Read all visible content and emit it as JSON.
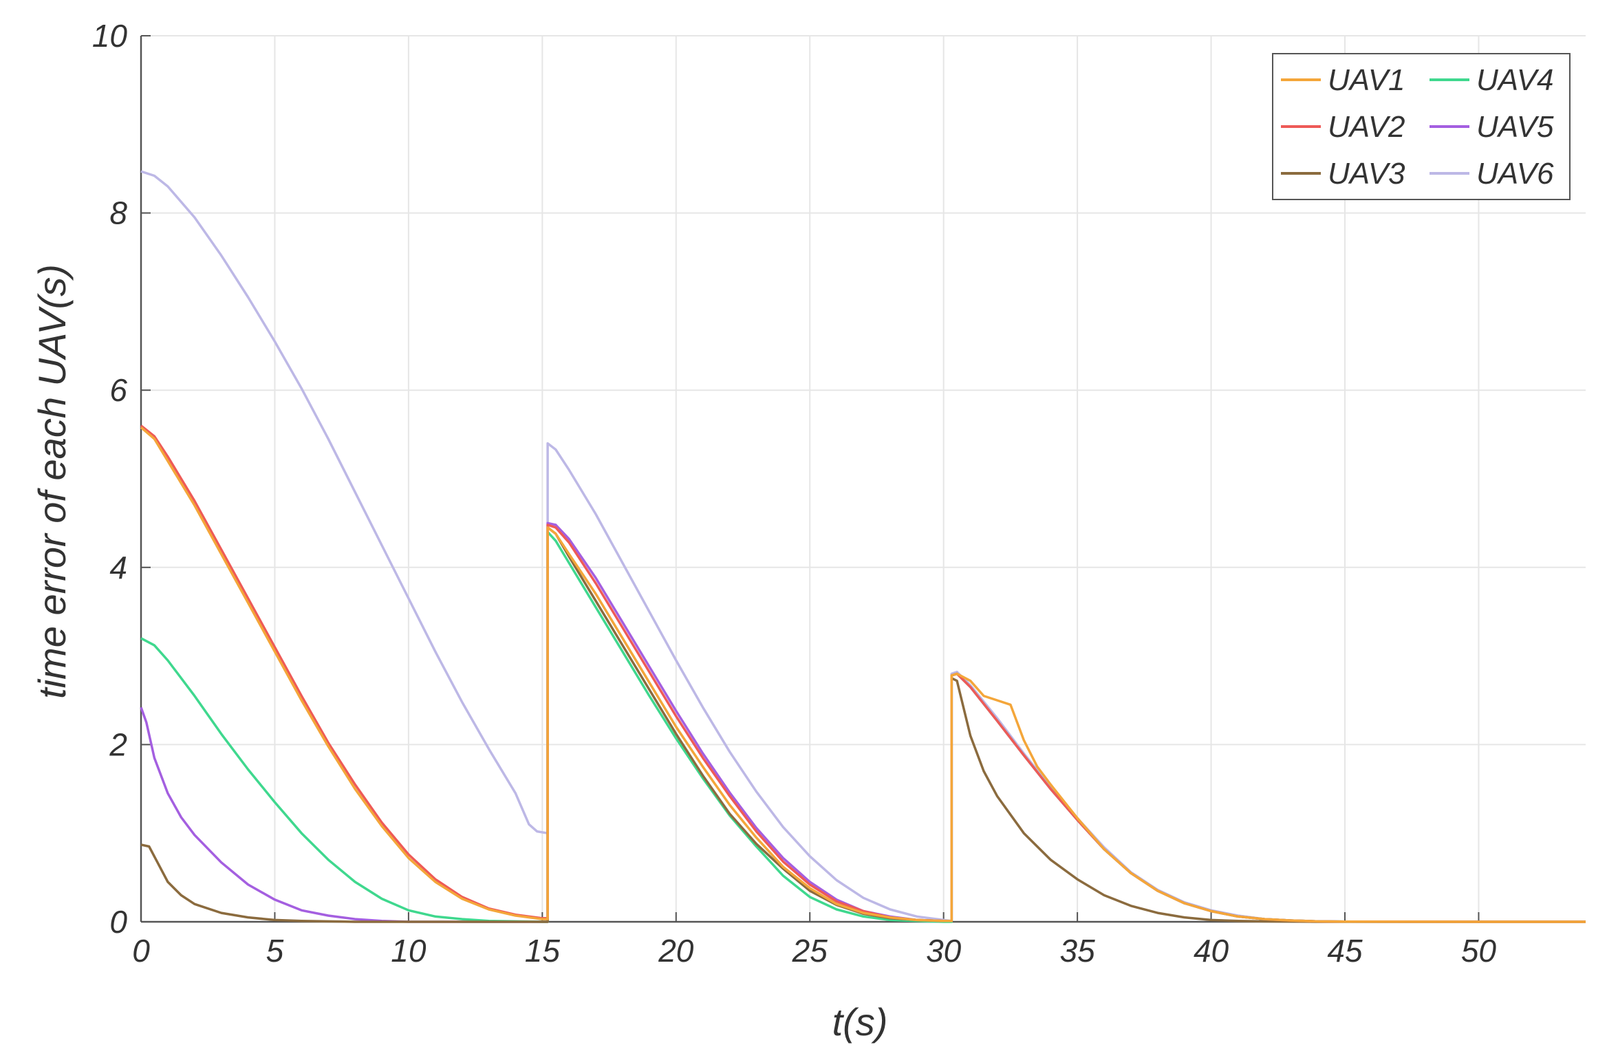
{
  "chart_data": {
    "type": "line",
    "title": "",
    "xlabel": "t(s)",
    "ylabel": "time error of each UAV(s)",
    "xlim": [
      0,
      54
    ],
    "ylim": [
      0,
      10
    ],
    "xticks": [
      0,
      5,
      10,
      15,
      20,
      25,
      30,
      35,
      40,
      45,
      50
    ],
    "yticks": [
      0,
      2,
      4,
      6,
      8,
      10
    ],
    "grid": true,
    "legend_position": "top-right",
    "legend_columns": 2,
    "series": [
      {
        "name": "UAV1",
        "color": "#F4A63A",
        "points": [
          [
            0,
            5.58
          ],
          [
            0.5,
            5.45
          ],
          [
            1,
            5.2
          ],
          [
            2,
            4.7
          ],
          [
            3,
            4.15
          ],
          [
            4,
            3.6
          ],
          [
            5,
            3.05
          ],
          [
            6,
            2.5
          ],
          [
            7,
            1.98
          ],
          [
            8,
            1.5
          ],
          [
            9,
            1.08
          ],
          [
            10,
            0.72
          ],
          [
            11,
            0.45
          ],
          [
            12,
            0.26
          ],
          [
            13,
            0.14
          ],
          [
            14,
            0.07
          ],
          [
            15,
            0.03
          ],
          [
            15.2,
            0.03
          ],
          [
            15.2,
            4.45
          ],
          [
            15.5,
            4.38
          ],
          [
            16,
            4.15
          ],
          [
            17,
            3.7
          ],
          [
            18,
            3.2
          ],
          [
            19,
            2.7
          ],
          [
            20,
            2.2
          ],
          [
            21,
            1.75
          ],
          [
            22,
            1.32
          ],
          [
            23,
            0.95
          ],
          [
            24,
            0.62
          ],
          [
            25,
            0.38
          ],
          [
            26,
            0.2
          ],
          [
            27,
            0.1
          ],
          [
            28,
            0.05
          ],
          [
            29,
            0.02
          ],
          [
            30,
            0.01
          ],
          [
            30.3,
            0.01
          ],
          [
            30.3,
            2.78
          ],
          [
            30.5,
            2.8
          ],
          [
            31,
            2.72
          ],
          [
            31.5,
            2.55
          ],
          [
            32,
            2.5
          ],
          [
            32.5,
            2.45
          ],
          [
            33,
            2.05
          ],
          [
            33.5,
            1.75
          ],
          [
            34,
            1.55
          ],
          [
            35,
            1.17
          ],
          [
            36,
            0.82
          ],
          [
            37,
            0.55
          ],
          [
            38,
            0.35
          ],
          [
            39,
            0.21
          ],
          [
            40,
            0.12
          ],
          [
            41,
            0.06
          ],
          [
            42,
            0.03
          ],
          [
            43,
            0.015
          ],
          [
            44,
            0.005
          ],
          [
            45,
            0.002
          ],
          [
            50,
            0
          ],
          [
            54,
            0
          ]
        ]
      },
      {
        "name": "UAV2",
        "color": "#EE5A57",
        "points": [
          [
            0,
            5.6
          ],
          [
            0.5,
            5.48
          ],
          [
            1,
            5.25
          ],
          [
            2,
            4.75
          ],
          [
            3,
            4.2
          ],
          [
            4,
            3.65
          ],
          [
            5,
            3.1
          ],
          [
            6,
            2.55
          ],
          [
            7,
            2.02
          ],
          [
            8,
            1.55
          ],
          [
            9,
            1.12
          ],
          [
            10,
            0.76
          ],
          [
            11,
            0.48
          ],
          [
            12,
            0.28
          ],
          [
            13,
            0.15
          ],
          [
            14,
            0.08
          ],
          [
            15,
            0.04
          ],
          [
            15.2,
            0.04
          ],
          [
            15.2,
            4.48
          ],
          [
            15.5,
            4.45
          ],
          [
            16,
            4.28
          ],
          [
            17,
            3.82
          ],
          [
            18,
            3.32
          ],
          [
            19,
            2.82
          ],
          [
            20,
            2.32
          ],
          [
            21,
            1.85
          ],
          [
            22,
            1.42
          ],
          [
            23,
            1.02
          ],
          [
            24,
            0.68
          ],
          [
            25,
            0.42
          ],
          [
            26,
            0.23
          ],
          [
            27,
            0.12
          ],
          [
            28,
            0.05
          ],
          [
            29,
            0.02
          ],
          [
            30,
            0.01
          ],
          [
            30.3,
            0.01
          ],
          [
            30.3,
            2.78
          ],
          [
            30.5,
            2.8
          ],
          [
            31,
            2.65
          ],
          [
            32,
            2.27
          ],
          [
            33,
            1.88
          ],
          [
            34,
            1.5
          ],
          [
            35,
            1.15
          ],
          [
            36,
            0.82
          ],
          [
            37,
            0.55
          ],
          [
            38,
            0.35
          ],
          [
            39,
            0.21
          ],
          [
            40,
            0.12
          ],
          [
            41,
            0.06
          ],
          [
            42,
            0.03
          ],
          [
            43,
            0.015
          ],
          [
            44,
            0.005
          ],
          [
            45,
            0.002
          ],
          [
            50,
            0
          ],
          [
            54,
            0
          ]
        ]
      },
      {
        "name": "UAV3",
        "color": "#8B6B3E",
        "points": [
          [
            0,
            0.87
          ],
          [
            0.3,
            0.85
          ],
          [
            0.6,
            0.68
          ],
          [
            1,
            0.45
          ],
          [
            1.5,
            0.3
          ],
          [
            2,
            0.2
          ],
          [
            3,
            0.1
          ],
          [
            4,
            0.05
          ],
          [
            5,
            0.02
          ],
          [
            6,
            0.01
          ],
          [
            8,
            0
          ],
          [
            15,
            0
          ],
          [
            15.2,
            0
          ],
          [
            15.2,
            4.45
          ],
          [
            15.5,
            4.38
          ],
          [
            16,
            4.12
          ],
          [
            17,
            3.62
          ],
          [
            18,
            3.12
          ],
          [
            19,
            2.62
          ],
          [
            20,
            2.12
          ],
          [
            21,
            1.65
          ],
          [
            22,
            1.22
          ],
          [
            23,
            0.88
          ],
          [
            24,
            0.6
          ],
          [
            25,
            0.35
          ],
          [
            26,
            0.19
          ],
          [
            27,
            0.09
          ],
          [
            28,
            0.04
          ],
          [
            29,
            0.02
          ],
          [
            30,
            0.01
          ],
          [
            30.3,
            0.01
          ],
          [
            30.3,
            2.75
          ],
          [
            30.5,
            2.72
          ],
          [
            31,
            2.1
          ],
          [
            31.5,
            1.7
          ],
          [
            32,
            1.42
          ],
          [
            33,
            1.0
          ],
          [
            34,
            0.7
          ],
          [
            35,
            0.48
          ],
          [
            36,
            0.3
          ],
          [
            37,
            0.18
          ],
          [
            38,
            0.1
          ],
          [
            39,
            0.05
          ],
          [
            40,
            0.02
          ],
          [
            41,
            0.01
          ],
          [
            42,
            0.005
          ],
          [
            44,
            0
          ],
          [
            54,
            0
          ]
        ]
      },
      {
        "name": "UAV4",
        "color": "#3FD88E",
        "points": [
          [
            0,
            3.2
          ],
          [
            0.5,
            3.12
          ],
          [
            1,
            2.95
          ],
          [
            2,
            2.55
          ],
          [
            3,
            2.12
          ],
          [
            4,
            1.72
          ],
          [
            5,
            1.35
          ],
          [
            6,
            1.0
          ],
          [
            7,
            0.7
          ],
          [
            8,
            0.45
          ],
          [
            9,
            0.26
          ],
          [
            10,
            0.13
          ],
          [
            11,
            0.06
          ],
          [
            12,
            0.03
          ],
          [
            13,
            0.01
          ],
          [
            14,
            0.005
          ],
          [
            15,
            0
          ],
          [
            15.2,
            0
          ],
          [
            15.2,
            4.4
          ],
          [
            15.5,
            4.3
          ],
          [
            16,
            4.05
          ],
          [
            17,
            3.55
          ],
          [
            18,
            3.05
          ],
          [
            19,
            2.55
          ],
          [
            20,
            2.07
          ],
          [
            21,
            1.62
          ],
          [
            22,
            1.2
          ],
          [
            23,
            0.85
          ],
          [
            24,
            0.52
          ],
          [
            25,
            0.28
          ],
          [
            26,
            0.14
          ],
          [
            27,
            0.06
          ],
          [
            28,
            0.02
          ],
          [
            29,
            0.01
          ],
          [
            30,
            0
          ],
          [
            30.3,
            0
          ],
          [
            30.3,
            2.78
          ],
          [
            30.5,
            2.8
          ],
          [
            31,
            2.65
          ],
          [
            32,
            2.27
          ],
          [
            33,
            1.88
          ],
          [
            34,
            1.5
          ],
          [
            35,
            1.15
          ],
          [
            36,
            0.82
          ],
          [
            37,
            0.55
          ],
          [
            38,
            0.35
          ],
          [
            39,
            0.21
          ],
          [
            40,
            0.12
          ],
          [
            41,
            0.06
          ],
          [
            42,
            0.03
          ],
          [
            43,
            0.015
          ],
          [
            44,
            0.005
          ],
          [
            45,
            0.002
          ],
          [
            50,
            0
          ],
          [
            54,
            0
          ]
        ]
      },
      {
        "name": "UAV5",
        "color": "#A45FE0",
        "points": [
          [
            0,
            2.42
          ],
          [
            0.2,
            2.25
          ],
          [
            0.5,
            1.85
          ],
          [
            1,
            1.45
          ],
          [
            1.5,
            1.18
          ],
          [
            2,
            0.98
          ],
          [
            3,
            0.67
          ],
          [
            4,
            0.42
          ],
          [
            5,
            0.25
          ],
          [
            6,
            0.13
          ],
          [
            7,
            0.07
          ],
          [
            8,
            0.03
          ],
          [
            9,
            0.01
          ],
          [
            10,
            0
          ],
          [
            15,
            0
          ],
          [
            15.2,
            0
          ],
          [
            15.2,
            4.5
          ],
          [
            15.5,
            4.48
          ],
          [
            16,
            4.32
          ],
          [
            17,
            3.88
          ],
          [
            18,
            3.38
          ],
          [
            19,
            2.88
          ],
          [
            20,
            2.38
          ],
          [
            21,
            1.9
          ],
          [
            22,
            1.46
          ],
          [
            23,
            1.06
          ],
          [
            24,
            0.72
          ],
          [
            25,
            0.45
          ],
          [
            26,
            0.25
          ],
          [
            27,
            0.12
          ],
          [
            28,
            0.06
          ],
          [
            29,
            0.02
          ],
          [
            30,
            0.01
          ],
          [
            30.3,
            0.01
          ],
          [
            30.3,
            2.78
          ],
          [
            30.5,
            2.8
          ],
          [
            31,
            2.65
          ],
          [
            32,
            2.27
          ],
          [
            33,
            1.88
          ],
          [
            34,
            1.5
          ],
          [
            35,
            1.15
          ],
          [
            36,
            0.82
          ],
          [
            37,
            0.55
          ],
          [
            38,
            0.35
          ],
          [
            39,
            0.21
          ],
          [
            40,
            0.12
          ],
          [
            41,
            0.06
          ],
          [
            42,
            0.03
          ],
          [
            43,
            0.015
          ],
          [
            44,
            0.005
          ],
          [
            45,
            0.002
          ],
          [
            50,
            0
          ],
          [
            54,
            0
          ]
        ]
      },
      {
        "name": "UAV6",
        "color": "#BDB8E6",
        "points": [
          [
            0,
            8.47
          ],
          [
            0.5,
            8.42
          ],
          [
            1,
            8.3
          ],
          [
            2,
            7.95
          ],
          [
            3,
            7.52
          ],
          [
            4,
            7.05
          ],
          [
            5,
            6.55
          ],
          [
            6,
            6.02
          ],
          [
            7,
            5.45
          ],
          [
            8,
            4.85
          ],
          [
            9,
            4.25
          ],
          [
            10,
            3.65
          ],
          [
            11,
            3.05
          ],
          [
            12,
            2.48
          ],
          [
            13,
            1.95
          ],
          [
            14,
            1.45
          ],
          [
            14.5,
            1.1
          ],
          [
            14.8,
            1.02
          ],
          [
            15.2,
            1.0
          ],
          [
            15.2,
            5.4
          ],
          [
            15.5,
            5.33
          ],
          [
            16,
            5.1
          ],
          [
            17,
            4.6
          ],
          [
            18,
            4.05
          ],
          [
            19,
            3.5
          ],
          [
            20,
            2.95
          ],
          [
            21,
            2.42
          ],
          [
            22,
            1.92
          ],
          [
            23,
            1.47
          ],
          [
            24,
            1.07
          ],
          [
            25,
            0.74
          ],
          [
            26,
            0.47
          ],
          [
            27,
            0.27
          ],
          [
            28,
            0.14
          ],
          [
            29,
            0.06
          ],
          [
            30,
            0.02
          ],
          [
            30.3,
            0.01
          ],
          [
            30.3,
            2.8
          ],
          [
            30.5,
            2.82
          ],
          [
            31,
            2.67
          ],
          [
            32,
            2.3
          ],
          [
            33,
            1.9
          ],
          [
            34,
            1.52
          ],
          [
            35,
            1.17
          ],
          [
            36,
            0.84
          ],
          [
            37,
            0.56
          ],
          [
            38,
            0.36
          ],
          [
            39,
            0.22
          ],
          [
            40,
            0.13
          ],
          [
            41,
            0.07
          ],
          [
            42,
            0.03
          ],
          [
            43,
            0.015
          ],
          [
            44,
            0.005
          ],
          [
            45,
            0.002
          ],
          [
            50,
            0
          ],
          [
            54,
            0
          ]
        ]
      }
    ]
  }
}
